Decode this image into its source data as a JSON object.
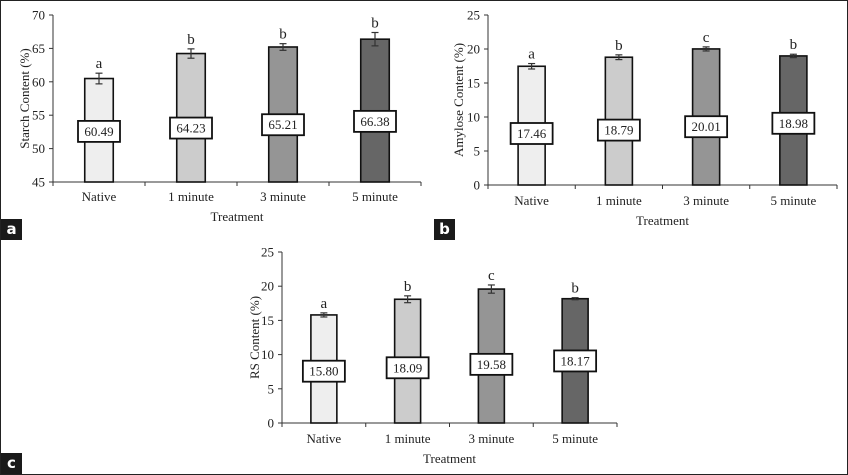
{
  "chart_data": [
    {
      "panel": "a",
      "type": "bar",
      "title": "",
      "xlabel": "Treatment",
      "ylabel": "Starch Content (%)",
      "ylim": [
        45,
        70
      ],
      "yticks": [
        45,
        50,
        55,
        60,
        65,
        70
      ],
      "categories": [
        "Native",
        "1 minute",
        "3 minute",
        "5 minute"
      ],
      "values": [
        60.49,
        64.23,
        65.21,
        66.38
      ],
      "value_labels": [
        "60.49",
        "64.23",
        "65.21",
        "66.38"
      ],
      "errors": [
        0.8,
        0.7,
        0.5,
        1.0
      ],
      "significance": [
        "a",
        "b",
        "b",
        "b"
      ],
      "colors": [
        "#eeeeee",
        "#cccccc",
        "#959595",
        "#666666"
      ],
      "grid": false,
      "legend": "none"
    },
    {
      "panel": "b",
      "type": "bar",
      "title": "",
      "xlabel": "Treatment",
      "ylabel": "Amylose Content (%)",
      "ylim": [
        0,
        25
      ],
      "yticks": [
        0,
        5,
        10,
        15,
        20,
        25
      ],
      "categories": [
        "Native",
        "1 minute",
        "3 minute",
        "5 minute"
      ],
      "values": [
        17.46,
        18.79,
        20.01,
        18.98
      ],
      "value_labels": [
        "17.46",
        "18.79",
        "20.01",
        "18.98"
      ],
      "errors": [
        0.4,
        0.35,
        0.3,
        0.25
      ],
      "significance": [
        "a",
        "b",
        "c",
        "b"
      ],
      "colors": [
        "#eeeeee",
        "#cccccc",
        "#959595",
        "#666666"
      ],
      "grid": false,
      "legend": "none"
    },
    {
      "panel": "c",
      "type": "bar",
      "title": "",
      "xlabel": "Treatment",
      "ylabel": "RS Content (%)",
      "ylim": [
        0,
        25
      ],
      "yticks": [
        0,
        5,
        10,
        15,
        20,
        25
      ],
      "categories": [
        "Native",
        "1 minute",
        "3 minute",
        "5 minute"
      ],
      "values": [
        15.8,
        18.09,
        19.58,
        18.17
      ],
      "value_labels": [
        "15.80",
        "18.09",
        "19.58",
        "18.17"
      ],
      "errors": [
        0.3,
        0.5,
        0.6,
        0.15
      ],
      "significance": [
        "a",
        "b",
        "c",
        "b"
      ],
      "colors": [
        "#eeeeee",
        "#cccccc",
        "#959595",
        "#666666"
      ],
      "grid": false,
      "legend": "none"
    }
  ],
  "panel_tags": [
    "a",
    "b",
    "c"
  ]
}
